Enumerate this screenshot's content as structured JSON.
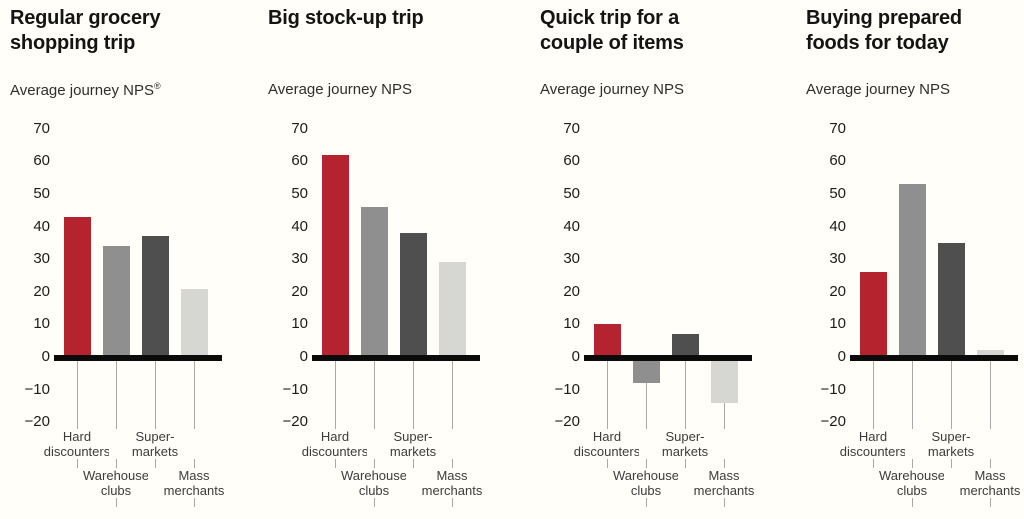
{
  "page": {
    "background_color": "#fffef9",
    "description_text": "Four side-by-side bar charts comparing average journey NPS by grocery trip type across retailer formats"
  },
  "colors": {
    "bar_palette": [
      "#b5232e",
      "#8f8f8f",
      "#4f4f4f",
      "#d6d6d3"
    ],
    "axis_line": "#0b0b0b",
    "leader_line": "#a9a9a9",
    "title_text": "#141414",
    "tick_text": "#1c1c1c",
    "category_text": "#3c3c3c"
  },
  "axis": {
    "tick_values": [
      70,
      60,
      50,
      40,
      30,
      20,
      10,
      0,
      -10,
      -20
    ],
    "tick_labels": [
      "70",
      "60",
      "50",
      "40",
      "30",
      "20",
      "10",
      "0",
      "−10",
      "−20"
    ]
  },
  "categories": [
    {
      "name": "Hard discounters",
      "label_lines": "Hard\ndiscounters",
      "label_row": "upper"
    },
    {
      "name": "Warehouse clubs",
      "label_lines": "Warehouse\nclubs",
      "label_row": "lower"
    },
    {
      "name": "Super-markets",
      "label_lines": "Super-\nmarkets",
      "label_row": "upper"
    },
    {
      "name": "Mass merchants",
      "label_lines": "Mass\nmerchants",
      "label_row": "lower"
    }
  ],
  "chart_data": [
    {
      "type": "bar",
      "title": "Regular grocery shopping trip",
      "title_lines": "Regular grocery\nshopping trip",
      "subtitle": "Average journey NPS",
      "subtitle_superscript": "®",
      "categories": [
        "Hard discounters",
        "Warehouse clubs",
        "Super-markets",
        "Mass merchants"
      ],
      "values": [
        43,
        34,
        37,
        21
      ],
      "ylim": [
        -20,
        70
      ],
      "grid": false,
      "legend": false
    },
    {
      "type": "bar",
      "title": "Big stock-up trip",
      "title_lines": "Big stock-up trip",
      "subtitle": "Average journey NPS",
      "subtitle_superscript": "",
      "categories": [
        "Hard discounters",
        "Warehouse clubs",
        "Super-markets",
        "Mass merchants"
      ],
      "values": [
        62,
        46,
        38,
        29
      ],
      "ylim": [
        -20,
        70
      ],
      "grid": false,
      "legend": false
    },
    {
      "type": "bar",
      "title": "Quick trip for a couple of items",
      "title_lines": "Quick trip for a\ncouple of items",
      "subtitle": "Average journey NPS",
      "subtitle_superscript": "",
      "categories": [
        "Hard discounters",
        "Warehouse clubs",
        "Super-markets",
        "Mass merchants"
      ],
      "values": [
        10,
        -8,
        7,
        -14
      ],
      "ylim": [
        -20,
        70
      ],
      "grid": false,
      "legend": false
    },
    {
      "type": "bar",
      "title": "Buying prepared foods for today",
      "title_lines": "Buying prepared\nfoods for today",
      "subtitle": "Average journey NPS",
      "subtitle_superscript": "",
      "categories": [
        "Hard discounters",
        "Warehouse clubs",
        "Super-markets",
        "Mass merchants"
      ],
      "values": [
        26,
        53,
        35,
        2
      ],
      "ylim": [
        -20,
        70
      ],
      "grid": false,
      "legend": false
    }
  ]
}
